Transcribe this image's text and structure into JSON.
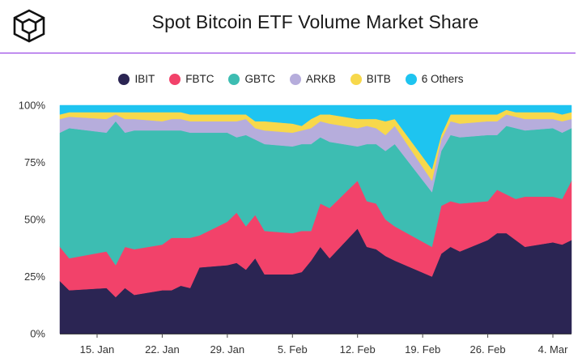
{
  "header": {
    "title": "Spot Bitcoin ETF Volume Market Share",
    "logo_icon": "cube-icon"
  },
  "chart_data": {
    "type": "area",
    "stacked": true,
    "normalized_percent": true,
    "title": "Spot Bitcoin ETF Volume Market Share",
    "xlabel": "",
    "ylabel": "",
    "ylim": [
      0,
      100
    ],
    "yticks": [
      "0%",
      "25%",
      "50%",
      "75%",
      "100%"
    ],
    "xticks": [
      "15. Jan",
      "22. Jan",
      "29. Jan",
      "5. Feb",
      "12. Feb",
      "19. Feb",
      "26. Feb",
      "4. Mar"
    ],
    "legend_position": "top-center",
    "grid": false,
    "x": [
      "2024-01-11",
      "2024-01-12",
      "2024-01-16",
      "2024-01-17",
      "2024-01-18",
      "2024-01-19",
      "2024-01-22",
      "2024-01-23",
      "2024-01-24",
      "2024-01-25",
      "2024-01-26",
      "2024-01-29",
      "2024-01-30",
      "2024-01-31",
      "2024-02-01",
      "2024-02-02",
      "2024-02-05",
      "2024-02-06",
      "2024-02-07",
      "2024-02-08",
      "2024-02-09",
      "2024-02-12",
      "2024-02-13",
      "2024-02-14",
      "2024-02-15",
      "2024-02-16",
      "2024-02-20",
      "2024-02-21",
      "2024-02-22",
      "2024-02-23",
      "2024-02-26",
      "2024-02-27",
      "2024-02-28",
      "2024-02-29",
      "2024-03-01",
      "2024-03-04",
      "2024-03-05",
      "2024-03-06"
    ],
    "series": [
      {
        "name": "IBIT",
        "color": "#2b2553",
        "values": [
          23,
          19,
          20,
          16,
          20,
          17,
          19,
          19,
          21,
          20,
          29,
          30,
          31,
          28,
          33,
          26,
          26,
          27,
          32,
          38,
          33,
          46,
          38,
          37,
          34,
          32,
          25,
          35,
          38,
          36,
          41,
          44,
          44,
          41,
          38,
          40,
          39,
          41
        ]
      },
      {
        "name": "FBTC",
        "color": "#f2426a",
        "values": [
          15,
          14,
          16,
          14,
          18,
          20,
          20,
          23,
          21,
          22,
          14,
          19,
          22,
          19,
          19,
          19,
          18,
          18,
          13,
          19,
          22,
          21,
          20,
          20,
          16,
          15,
          13,
          21,
          20,
          21,
          17,
          19,
          17,
          18,
          22,
          20,
          20,
          26
        ]
      },
      {
        "name": "GBTC",
        "color": "#3dbdb2",
        "values": [
          50,
          57,
          52,
          63,
          50,
          52,
          50,
          47,
          47,
          46,
          45,
          39,
          33,
          40,
          33,
          38,
          38,
          38,
          38,
          29,
          29,
          15,
          25,
          26,
          30,
          36,
          24,
          24,
          29,
          29,
          29,
          24,
          30,
          31,
          29,
          30,
          29,
          23
        ]
      },
      {
        "name": "ARKB",
        "color": "#b6addc",
        "values": [
          6,
          5,
          6,
          3,
          6,
          5,
          4,
          5,
          5,
          5,
          5,
          5,
          7,
          7,
          5,
          6,
          6,
          6,
          7,
          7,
          8,
          8,
          8,
          7,
          7,
          8,
          5,
          5,
          6,
          6,
          6,
          6,
          5,
          5,
          5,
          4,
          5,
          4
        ]
      },
      {
        "name": "BITB",
        "color": "#f7d84b",
        "values": [
          2,
          2,
          3,
          1,
          3,
          3,
          4,
          3,
          3,
          3,
          3,
          3,
          3,
          2,
          3,
          4,
          4,
          2,
          4,
          3,
          4,
          4,
          3,
          4,
          6,
          3,
          5,
          2,
          3,
          4,
          3,
          3,
          2,
          2,
          3,
          3,
          3,
          3
        ]
      },
      {
        "name": "6 Others",
        "color": "#1ec4f0",
        "values": [
          4,
          3,
          3,
          3,
          3,
          3,
          3,
          3,
          3,
          4,
          4,
          4,
          4,
          4,
          7,
          7,
          8,
          9,
          6,
          4,
          4,
          6,
          6,
          6,
          7,
          6,
          28,
          13,
          4,
          4,
          4,
          4,
          2,
          3,
          3,
          3,
          4,
          3
        ]
      }
    ]
  }
}
